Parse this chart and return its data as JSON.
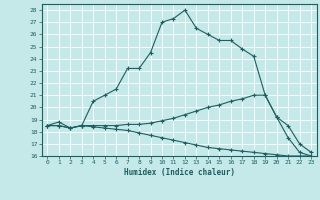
{
  "xlabel": "Humidex (Indice chaleur)",
  "bg_color": "#c5e8e8",
  "line_color": "#1a6060",
  "grid_color": "#ffffff",
  "xlim": [
    -0.5,
    23.5
  ],
  "ylim": [
    16,
    28.5
  ],
  "yticks": [
    16,
    17,
    18,
    19,
    20,
    21,
    22,
    23,
    24,
    25,
    26,
    27,
    28
  ],
  "xticks": [
    0,
    1,
    2,
    3,
    4,
    5,
    6,
    7,
    8,
    9,
    10,
    11,
    12,
    13,
    14,
    15,
    16,
    17,
    18,
    19,
    20,
    21,
    22,
    23
  ],
  "series": [
    {
      "x": [
        0,
        1,
        2,
        3,
        4,
        5,
        6,
        7,
        8,
        9,
        10,
        11,
        12,
        13,
        14,
        15,
        16,
        17,
        18,
        19,
        20,
        21,
        22,
        23
      ],
      "y": [
        18.5,
        18.8,
        18.3,
        18.5,
        20.5,
        21.0,
        21.5,
        23.2,
        23.2,
        24.5,
        27.0,
        27.3,
        28.0,
        26.5,
        26.0,
        25.5,
        25.5,
        24.8,
        24.2,
        21.0,
        19.2,
        17.5,
        16.3,
        16.0
      ]
    },
    {
      "x": [
        0,
        1,
        2,
        3,
        4,
        5,
        6,
        7,
        8,
        9,
        10,
        11,
        12,
        13,
        14,
        15,
        16,
        17,
        18,
        19,
        20,
        21,
        22,
        23
      ],
      "y": [
        18.5,
        18.5,
        18.3,
        18.5,
        18.5,
        18.5,
        18.5,
        18.6,
        18.6,
        18.7,
        18.9,
        19.1,
        19.4,
        19.7,
        20.0,
        20.2,
        20.5,
        20.7,
        21.0,
        21.0,
        19.2,
        18.5,
        17.0,
        16.3
      ]
    },
    {
      "x": [
        0,
        1,
        2,
        3,
        4,
        5,
        6,
        7,
        8,
        9,
        10,
        11,
        12,
        13,
        14,
        15,
        16,
        17,
        18,
        19,
        20,
        21,
        22,
        23
      ],
      "y": [
        18.5,
        18.5,
        18.3,
        18.5,
        18.4,
        18.3,
        18.2,
        18.1,
        17.9,
        17.7,
        17.5,
        17.3,
        17.1,
        16.9,
        16.7,
        16.6,
        16.5,
        16.4,
        16.3,
        16.2,
        16.1,
        16.0,
        16.0,
        16.0
      ]
    }
  ]
}
